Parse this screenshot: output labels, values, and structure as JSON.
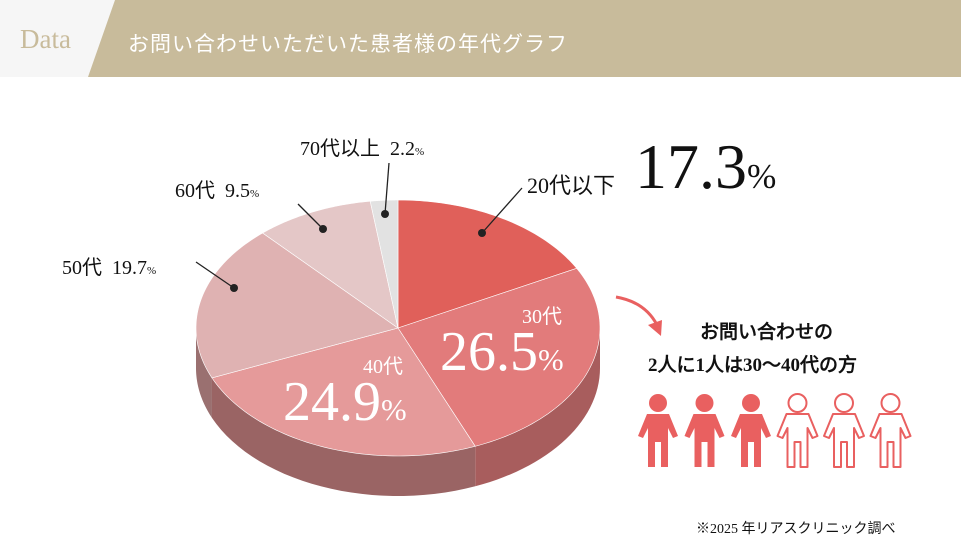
{
  "header": {
    "tag": "Data",
    "title": "お問い合わせいただいた患者様の年代グラフ"
  },
  "chart_data": {
    "type": "pie",
    "title": "お問い合わせいただいた患者様の年代グラフ",
    "unit": "%",
    "slices": [
      {
        "label": "20代以下",
        "value": 17.3,
        "color": "#e0605a",
        "side": "#9c4a47"
      },
      {
        "label": "30代",
        "value": 26.5,
        "color": "#e27b7b",
        "side": "#a85d5d"
      },
      {
        "label": "40代",
        "value": 24.9,
        "color": "#e59a9a",
        "side": "#9a6464"
      },
      {
        "label": "50代",
        "value": 19.7,
        "color": "#dfb2b2",
        "side": "#9a7070"
      },
      {
        "label": "60代",
        "value": 9.5,
        "color": "#e4c7c7",
        "side": "#a08686"
      },
      {
        "label": "70代以上",
        "value": 2.2,
        "color": "#e2e2e2",
        "side": "#9a9a9a"
      }
    ]
  },
  "labels": {
    "s0": {
      "name": "20代以下",
      "value": "17.3",
      "pct": "%"
    },
    "s1": {
      "name": "30代",
      "value": "26.5",
      "pct": "%"
    },
    "s2": {
      "name": "40代",
      "value": "24.9",
      "pct": "%"
    },
    "s3": {
      "name": "50代",
      "value": "19.7",
      "pct": "%"
    },
    "s4": {
      "name": "60代",
      "value": "9.5",
      "pct": "%"
    },
    "s5": {
      "name": "70代以上",
      "value": "2.2",
      "pct": "%"
    }
  },
  "callout": {
    "line1": "お問い合わせの",
    "line2": "2人に1人は30〜40代の方",
    "filled": 3,
    "total": 6,
    "color": "#e96060"
  },
  "footnote": "※2025 年リアスクリニック調べ"
}
